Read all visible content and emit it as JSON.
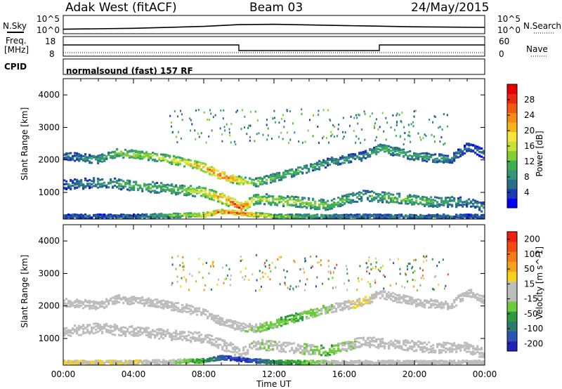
{
  "header": {
    "station": "Adak West (fitACF)",
    "beam": "Beam 03",
    "date": "24/May/2015"
  },
  "top_panel": {
    "left_label": "N.Sky",
    "left_ticks": [
      "10^5",
      "10^0"
    ],
    "right_label": "N.Search",
    "right_ticks": [
      "10^5",
      "10^0"
    ]
  },
  "freq_panel": {
    "left_label_1": "Freq.",
    "left_label_2": "[MHz]",
    "left_ticks": [
      "18",
      "8"
    ],
    "right_label": "Nave",
    "right_ticks": [
      "60",
      "0"
    ]
  },
  "cpid": {
    "label": "CPID",
    "mode": "normalsound (fast) 157 RF"
  },
  "xaxis": {
    "ticks": [
      "00:00",
      "04:00",
      "08:00",
      "12:00",
      "16:00",
      "20:00",
      "00:00"
    ],
    "label": "Time UT"
  },
  "power_panel": {
    "ylabel": "Slant Range [km]",
    "yticks": [
      "4000",
      "3000",
      "2000",
      "1000"
    ],
    "colorbar_label": "Power [dB]",
    "colorbar_ticks": [
      "28",
      "24",
      "20",
      "16",
      "12",
      "8",
      "4"
    ],
    "colors": [
      "#0000ff",
      "#1c3ab4",
      "#2a6e8a",
      "#35957a",
      "#3db051",
      "#7fcf35",
      "#c9e036",
      "#f7e33a",
      "#f7b51d",
      "#f58a14",
      "#f25b0e",
      "#ee2710",
      "#e80000"
    ]
  },
  "velocity_panel": {
    "ylabel": "Slant Range [km]",
    "yticks": [
      "4000",
      "3000",
      "2000",
      "1000"
    ],
    "colorbar_label": "Velocity [m s^-1]",
    "colorbar_ticks": [
      "200",
      "100",
      "50",
      "15",
      "-15",
      "-50",
      "-100",
      "-200"
    ],
    "colors": [
      "#2323b8",
      "#2b52b5",
      "#2d7a70",
      "#2d9a3e",
      "#6dcc3a",
      "#bdbdbd",
      "#bdbdbd",
      "#f6d21c",
      "#f7a21a",
      "#f57b15",
      "#f24c10",
      "#ee1f0f"
    ]
  },
  "chart_data": [
    {
      "type": "line",
      "title": "Adak West (fitACF)",
      "series": [
        {
          "name": "N.Sky"
        }
      ],
      "x": [
        "00:00",
        "04:00",
        "08:00",
        "10:00",
        "12:00",
        "16:00",
        "20:00",
        "00:00"
      ],
      "y_note": "log scale 10^0 to 10^5",
      "values": [
        10,
        20,
        80,
        300,
        400,
        150,
        60,
        40
      ],
      "ylim": [
        "10^0",
        "10^5"
      ]
    },
    {
      "type": "line",
      "series": [
        {
          "name": "Freq."
        }
      ],
      "x": [
        "00:00",
        "10:00",
        "10:00",
        "18:00",
        "18:00",
        "00:00"
      ],
      "values": [
        14,
        14,
        10,
        10,
        14,
        14
      ],
      "ylim": [
        8,
        18
      ]
    },
    {
      "type": "heatmap",
      "title": "Power [dB]",
      "xlabel": "Time UT",
      "ylabel": "Slant Range [km]",
      "xlim": [
        0,
        24
      ],
      "ylim": [
        180,
        4500
      ],
      "colorbar_range": [
        0,
        32
      ],
      "bands": [
        {
          "name": "upper band",
          "points": [
            [
              0.0,
              2100,
              6
            ],
            [
              2.0,
              2000,
              10
            ],
            [
              3.0,
              2200,
              14
            ],
            [
              5.0,
              2100,
              16
            ],
            [
              7.0,
              1900,
              20
            ],
            [
              8.0,
              1750,
              24
            ],
            [
              9.0,
              1500,
              28
            ],
            [
              10.0,
              1350,
              20
            ],
            [
              11.0,
              1300,
              14
            ],
            [
              13.0,
              1600,
              12
            ],
            [
              15.0,
              1900,
              10
            ],
            [
              17.0,
              2100,
              8
            ],
            [
              18.0,
              2350,
              12
            ],
            [
              20.0,
              2100,
              10
            ],
            [
              22.0,
              2000,
              8
            ],
            [
              23.0,
              2400,
              6
            ],
            [
              24.0,
              2150,
              6
            ]
          ]
        },
        {
          "name": "lower band",
          "points": [
            [
              0.0,
              1200,
              6
            ],
            [
              2.0,
              1300,
              8
            ],
            [
              4.0,
              1200,
              12
            ],
            [
              6.0,
              1100,
              12
            ],
            [
              8.0,
              1000,
              18
            ],
            [
              9.5,
              700,
              26
            ],
            [
              10.0,
              500,
              30
            ],
            [
              11.0,
              800,
              16
            ],
            [
              13.0,
              700,
              16
            ],
            [
              15.0,
              600,
              14
            ],
            [
              17.0,
              900,
              10
            ],
            [
              19.0,
              800,
              14
            ],
            [
              21.0,
              700,
              12
            ],
            [
              23.0,
              700,
              8
            ],
            [
              24.0,
              500,
              8
            ]
          ]
        },
        {
          "name": "near range",
          "points": [
            [
              0.0,
              250,
              6
            ],
            [
              4.0,
              250,
              6
            ],
            [
              8.0,
              300,
              20
            ],
            [
              9.0,
              400,
              30
            ],
            [
              10.0,
              350,
              30
            ],
            [
              12.0,
              250,
              16
            ],
            [
              16.0,
              250,
              8
            ],
            [
              20.0,
              250,
              8
            ],
            [
              24.0,
              250,
              6
            ]
          ]
        }
      ]
    },
    {
      "type": "heatmap",
      "title": "Velocity [m s^-1]",
      "xlabel": "Time UT",
      "ylabel": "Slant Range [km]",
      "xlim": [
        0,
        24
      ],
      "ylim": [
        180,
        4500
      ],
      "colorbar_range": [
        -200,
        200
      ],
      "bands": [
        {
          "name": "upper band",
          "points": [
            [
              0.0,
              2100,
              0
            ],
            [
              2.0,
              2000,
              0
            ],
            [
              3.0,
              2200,
              0
            ],
            [
              5.0,
              2100,
              0
            ],
            [
              7.0,
              1900,
              0
            ],
            [
              8.0,
              1750,
              0
            ],
            [
              9.0,
              1500,
              0
            ],
            [
              10.0,
              1350,
              0
            ],
            [
              11.0,
              1300,
              -40
            ],
            [
              13.0,
              1600,
              -60
            ],
            [
              15.0,
              1900,
              -30
            ],
            [
              17.0,
              2100,
              40
            ],
            [
              18.0,
              2350,
              0
            ],
            [
              20.0,
              2100,
              0
            ],
            [
              22.0,
              2000,
              0
            ],
            [
              23.0,
              2400,
              0
            ],
            [
              24.0,
              2150,
              0
            ]
          ]
        },
        {
          "name": "lower band",
          "points": [
            [
              0.0,
              1200,
              0
            ],
            [
              2.0,
              1300,
              0
            ],
            [
              4.0,
              1200,
              0
            ],
            [
              6.0,
              1100,
              0
            ],
            [
              8.0,
              1000,
              0
            ],
            [
              9.5,
              700,
              0
            ],
            [
              10.0,
              500,
              0
            ],
            [
              11.0,
              800,
              -30
            ],
            [
              13.0,
              700,
              0
            ],
            [
              15.0,
              600,
              -60
            ],
            [
              17.0,
              900,
              0
            ],
            [
              19.0,
              800,
              0
            ],
            [
              21.0,
              700,
              0
            ],
            [
              23.0,
              700,
              0
            ],
            [
              24.0,
              500,
              0
            ]
          ]
        },
        {
          "name": "near range",
          "points": [
            [
              0.0,
              250,
              30
            ],
            [
              4.0,
              250,
              30
            ],
            [
              8.0,
              300,
              -80
            ],
            [
              9.0,
              400,
              -150
            ],
            [
              10.0,
              350,
              -180
            ],
            [
              12.0,
              250,
              -100
            ],
            [
              16.0,
              250,
              0
            ],
            [
              20.0,
              250,
              0
            ],
            [
              24.0,
              250,
              0
            ]
          ]
        }
      ]
    }
  ]
}
